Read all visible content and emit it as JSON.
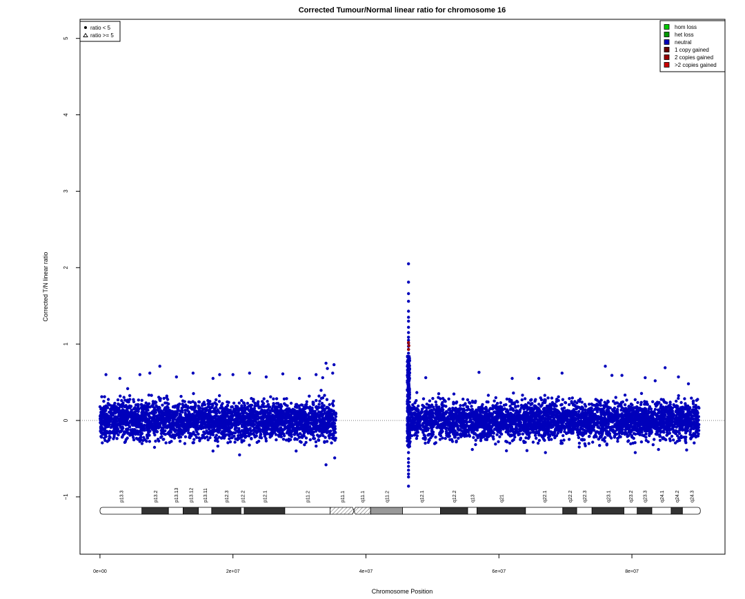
{
  "chart_data": {
    "type": "scatter",
    "title": "Corrected Tumour/Normal linear ratio for chromosome  16",
    "xlabel": "Chromosome Position",
    "ylabel": "Corrected T/N linear ratio",
    "xlim": [
      -3000000,
      94000000
    ],
    "ylim": [
      -1.75,
      5.25
    ],
    "x_ticks": [
      0,
      20000000,
      40000000,
      60000000,
      80000000
    ],
    "x_tick_labels": [
      "0e+00",
      "2e+07",
      "4e+07",
      "6e+07",
      "8e+07"
    ],
    "y_ticks": [
      -1,
      0,
      1,
      2,
      3,
      4,
      5
    ],
    "y_tick_labels": [
      "−1",
      "0",
      "1",
      "2",
      "3",
      "4",
      "5"
    ],
    "reference_line_y": 0,
    "grid": false,
    "shape_legend": {
      "position": "top-left",
      "items": [
        {
          "symbol": "circle",
          "label": "ratio < 5"
        },
        {
          "symbol": "triangle",
          "label": "ratio >= 5"
        }
      ]
    },
    "color_legend": {
      "position": "top-right",
      "items": [
        {
          "label": "hom loss",
          "color": "#00cc00"
        },
        {
          "label": "het loss",
          "color": "#009900"
        },
        {
          "label": "neutral",
          "color": "#0000bb"
        },
        {
          "label": "1 copy gained",
          "color": "#660000"
        },
        {
          "label": "2 copies gained",
          "color": "#990000"
        },
        {
          "label": ">2 copies gained",
          "color": "#cc0000"
        }
      ]
    },
    "series": [
      {
        "name": "neutral",
        "color": "#0000bb",
        "segments": [
          {
            "x_range": [
              0,
              35500000
            ],
            "mean": 0.0,
            "sd": 0.12,
            "range": [
              -0.42,
              0.46
            ]
          },
          {
            "x_range": [
              46500000,
              90100000
            ],
            "mean": 0.0,
            "sd": 0.12,
            "range": [
              -0.42,
              0.46
            ]
          }
        ],
        "outliers": [
          {
            "x": 900000,
            "y": 0.6
          },
          {
            "x": 3000000,
            "y": 0.55
          },
          {
            "x": 6000000,
            "y": 0.6
          },
          {
            "x": 7500000,
            "y": 0.62
          },
          {
            "x": 9000000,
            "y": 0.71
          },
          {
            "x": 11500000,
            "y": 0.57
          },
          {
            "x": 14000000,
            "y": 0.62
          },
          {
            "x": 17000000,
            "y": 0.55
          },
          {
            "x": 18000000,
            "y": 0.6
          },
          {
            "x": 20000000,
            "y": 0.6
          },
          {
            "x": 22500000,
            "y": 0.62
          },
          {
            "x": 25000000,
            "y": 0.57
          },
          {
            "x": 27500000,
            "y": 0.61
          },
          {
            "x": 30000000,
            "y": 0.55
          },
          {
            "x": 32500000,
            "y": 0.6
          },
          {
            "x": 34000000,
            "y": 0.75
          },
          {
            "x": 34200000,
            "y": 0.68
          },
          {
            "x": 35200000,
            "y": 0.73
          },
          {
            "x": 35000000,
            "y": 0.62
          },
          {
            "x": 33500000,
            "y": 0.56
          },
          {
            "x": 17000000,
            "y": -0.4
          },
          {
            "x": 21000000,
            "y": -0.45
          },
          {
            "x": 29500000,
            "y": -0.4
          },
          {
            "x": 34000000,
            "y": -0.58
          },
          {
            "x": 35300000,
            "y": -0.49
          },
          {
            "x": 49000000,
            "y": 0.56
          },
          {
            "x": 57000000,
            "y": 0.63
          },
          {
            "x": 62000000,
            "y": 0.55
          },
          {
            "x": 66000000,
            "y": 0.55
          },
          {
            "x": 69500000,
            "y": 0.62
          },
          {
            "x": 76000000,
            "y": 0.71
          },
          {
            "x": 77000000,
            "y": 0.59
          },
          {
            "x": 78500000,
            "y": 0.59
          },
          {
            "x": 82000000,
            "y": 0.56
          },
          {
            "x": 83500000,
            "y": 0.52
          },
          {
            "x": 85000000,
            "y": 0.69
          },
          {
            "x": 87000000,
            "y": 0.57
          },
          {
            "x": 88500000,
            "y": 0.48
          },
          {
            "x": 56000000,
            "y": -0.38
          },
          {
            "x": 67000000,
            "y": -0.42
          },
          {
            "x": 80500000,
            "y": -0.42
          },
          {
            "x": 84000000,
            "y": -0.38
          }
        ],
        "pericentromeric_spike": {
          "x_range": [
            46200000,
            46600000
          ],
          "points_y": [
            2.05,
            1.81,
            1.66,
            1.56,
            1.43,
            1.35,
            1.3,
            1.22,
            1.15,
            1.09,
            1.05,
            1.01,
            0.97,
            0.93,
            0.88,
            0.82,
            0.76,
            0.7,
            0.63,
            -0.42,
            -0.5,
            -0.55,
            -0.6,
            -0.65,
            -0.7,
            -0.74,
            -0.86
          ]
        }
      },
      {
        "name": "1 copy gained",
        "color": "#990000",
        "points": [
          {
            "x": 46400000,
            "y": 1.02
          },
          {
            "x": 46450000,
            "y": 0.98
          },
          {
            "x": 46400000,
            "y": 0.93
          }
        ]
      }
    ]
  },
  "ideogram": {
    "length": 90300000,
    "bands": [
      {
        "name": "p13.3",
        "start": 0,
        "end": 6300000,
        "stain": "gneg"
      },
      {
        "name": "p13.2",
        "start": 6300000,
        "end": 10300000,
        "stain": "gpos"
      },
      {
        "name": "p13.13",
        "start": 10300000,
        "end": 12500000,
        "stain": "gneg"
      },
      {
        "name": "p13.12",
        "start": 12500000,
        "end": 14800000,
        "stain": "gpos"
      },
      {
        "name": "p13.11",
        "start": 14800000,
        "end": 16800000,
        "stain": "gneg"
      },
      {
        "name": "p12.3",
        "start": 16800000,
        "end": 21200000,
        "stain": "gpos"
      },
      {
        "name": "p12.2",
        "start": 21200000,
        "end": 21700000,
        "stain": "gneg"
      },
      {
        "name": "p12.1",
        "start": 21700000,
        "end": 27800000,
        "stain": "gpos"
      },
      {
        "name": "p11.2",
        "start": 27800000,
        "end": 34600000,
        "stain": "gneg"
      },
      {
        "name": "p11.1",
        "start": 34600000,
        "end": 38200000,
        "stain": "acen-stripe"
      },
      {
        "name": "q11.1",
        "start": 38200000,
        "end": 40700000,
        "stain": "acen-stripe"
      },
      {
        "name": "q11.2",
        "start": 40700000,
        "end": 45500000,
        "stain": "gvar"
      },
      {
        "name": "q12.1",
        "start": 45500000,
        "end": 51200000,
        "stain": "gneg"
      },
      {
        "name": "q12.2",
        "start": 51200000,
        "end": 55300000,
        "stain": "gpos"
      },
      {
        "name": "q13",
        "start": 55300000,
        "end": 56700000,
        "stain": "gneg"
      },
      {
        "name": "q21",
        "start": 56700000,
        "end": 64000000,
        "stain": "gpos"
      },
      {
        "name": "q22.1",
        "start": 64000000,
        "end": 69600000,
        "stain": "gneg"
      },
      {
        "name": "q22.2",
        "start": 69600000,
        "end": 71700000,
        "stain": "gpos"
      },
      {
        "name": "q22.3",
        "start": 71700000,
        "end": 74000000,
        "stain": "gneg"
      },
      {
        "name": "q23.1",
        "start": 74000000,
        "end": 78800000,
        "stain": "gpos"
      },
      {
        "name": "q23.2",
        "start": 78800000,
        "end": 80800000,
        "stain": "gneg"
      },
      {
        "name": "q23.3",
        "start": 80800000,
        "end": 83000000,
        "stain": "gpos"
      },
      {
        "name": "q24.1",
        "start": 83000000,
        "end": 85900000,
        "stain": "gneg"
      },
      {
        "name": "q24.2",
        "start": 85900000,
        "end": 87600000,
        "stain": "gpos"
      },
      {
        "name": "q24.3",
        "start": 87600000,
        "end": 90300000,
        "stain": "gneg"
      }
    ]
  }
}
